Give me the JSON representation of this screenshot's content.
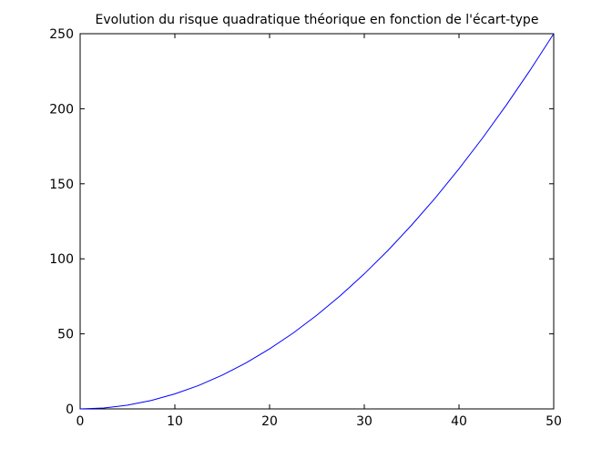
{
  "chart_data": {
    "type": "line",
    "title": "Evolution du risque quadratique théorique en fonction de l'écart-type",
    "xlabel": "",
    "ylabel": "",
    "xlim": [
      0,
      50
    ],
    "ylim": [
      0,
      250
    ],
    "x_ticks": [
      "0",
      "10",
      "20",
      "30",
      "40",
      "50"
    ],
    "y_ticks": [
      "0",
      "50",
      "100",
      "150",
      "200",
      "250"
    ],
    "grid": false,
    "legend": "none",
    "series": [
      {
        "color": "#0000ff",
        "x": [
          0,
          2.5,
          5,
          7.5,
          10,
          12.5,
          15,
          17.5,
          20,
          22.5,
          25,
          27.5,
          30,
          32.5,
          35,
          37.5,
          40,
          42.5,
          45,
          47.5,
          50
        ],
        "y": [
          0,
          0.6,
          2.5,
          5.6,
          10,
          15.6,
          22.5,
          30.6,
          40,
          50.6,
          62.5,
          75.6,
          90,
          105.6,
          122.5,
          140.6,
          160,
          180.6,
          202.5,
          225.6,
          250
        ]
      }
    ]
  },
  "colors": {
    "axes": "#000000",
    "line": "#0000ff",
    "background": "#ffffff"
  }
}
